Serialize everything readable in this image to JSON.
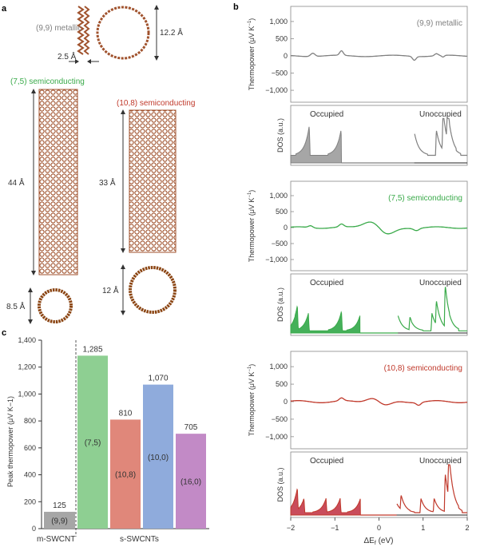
{
  "panel_labels": {
    "a": "a",
    "b": "b",
    "c": "c"
  },
  "panel_a": {
    "tubes": [
      {
        "label": "(9,9) metallic",
        "color": "#808080",
        "length": "12.2 Å",
        "gap": "2.5 Å"
      },
      {
        "label": "(7,5) semiconducting",
        "color": "#3aaa4a",
        "length": "44 Å",
        "diameter": "8.5 Å"
      },
      {
        "label": "(10,8) semiconducting",
        "color": "#c0392b",
        "length": "33 Å",
        "diameter": "12 Å"
      }
    ]
  },
  "panel_b": {
    "xlabel": "ΔE",
    "xlabel_sub": "f",
    "xlabel_unit": " (eV)",
    "x_ticks": [
      "−2",
      "−1",
      "0",
      "1",
      "2"
    ],
    "thermo_ylabel": "Thermopower (μV K",
    "thermo_ylabel_sup": "−1",
    "thermo_ylabel_end": ")",
    "thermo_ticks": [
      "1,000",
      "500",
      "0",
      "−500",
      "−1,000"
    ],
    "dos_ylabel": "DOS (a.u.)",
    "occupied": "Occupied",
    "unoccupied": "Unoccupied",
    "subpanels": [
      {
        "label": "(9,9) metallic",
        "color": "#808080"
      },
      {
        "label": "(7,5) semiconducting",
        "color": "#3aaa4a"
      },
      {
        "label": "(10,8) semiconducting",
        "color": "#c0392b"
      }
    ]
  },
  "chart_data": {
    "type": "bar",
    "ylabel": "Peak thermopower (μV K−1)",
    "ylim": [
      0,
      1400
    ],
    "y_ticks": [
      "0",
      "200",
      "400",
      "600",
      "800",
      "1,000",
      "1,200",
      "1,400"
    ],
    "categories": [
      "(9,9)",
      "(7,5)",
      "(10,8)",
      "(10,0)",
      "(16,0)"
    ],
    "values": [
      125,
      1285,
      810,
      1070,
      705
    ],
    "value_labels": [
      "125",
      "1,285",
      "810",
      "1,070",
      "705"
    ],
    "colors": [
      "#a6a6a6",
      "#8ecf92",
      "#e0877a",
      "#8fabdc",
      "#c28ac6"
    ],
    "groups": [
      "m-SWCNT",
      "s-SWCNTs"
    ]
  }
}
